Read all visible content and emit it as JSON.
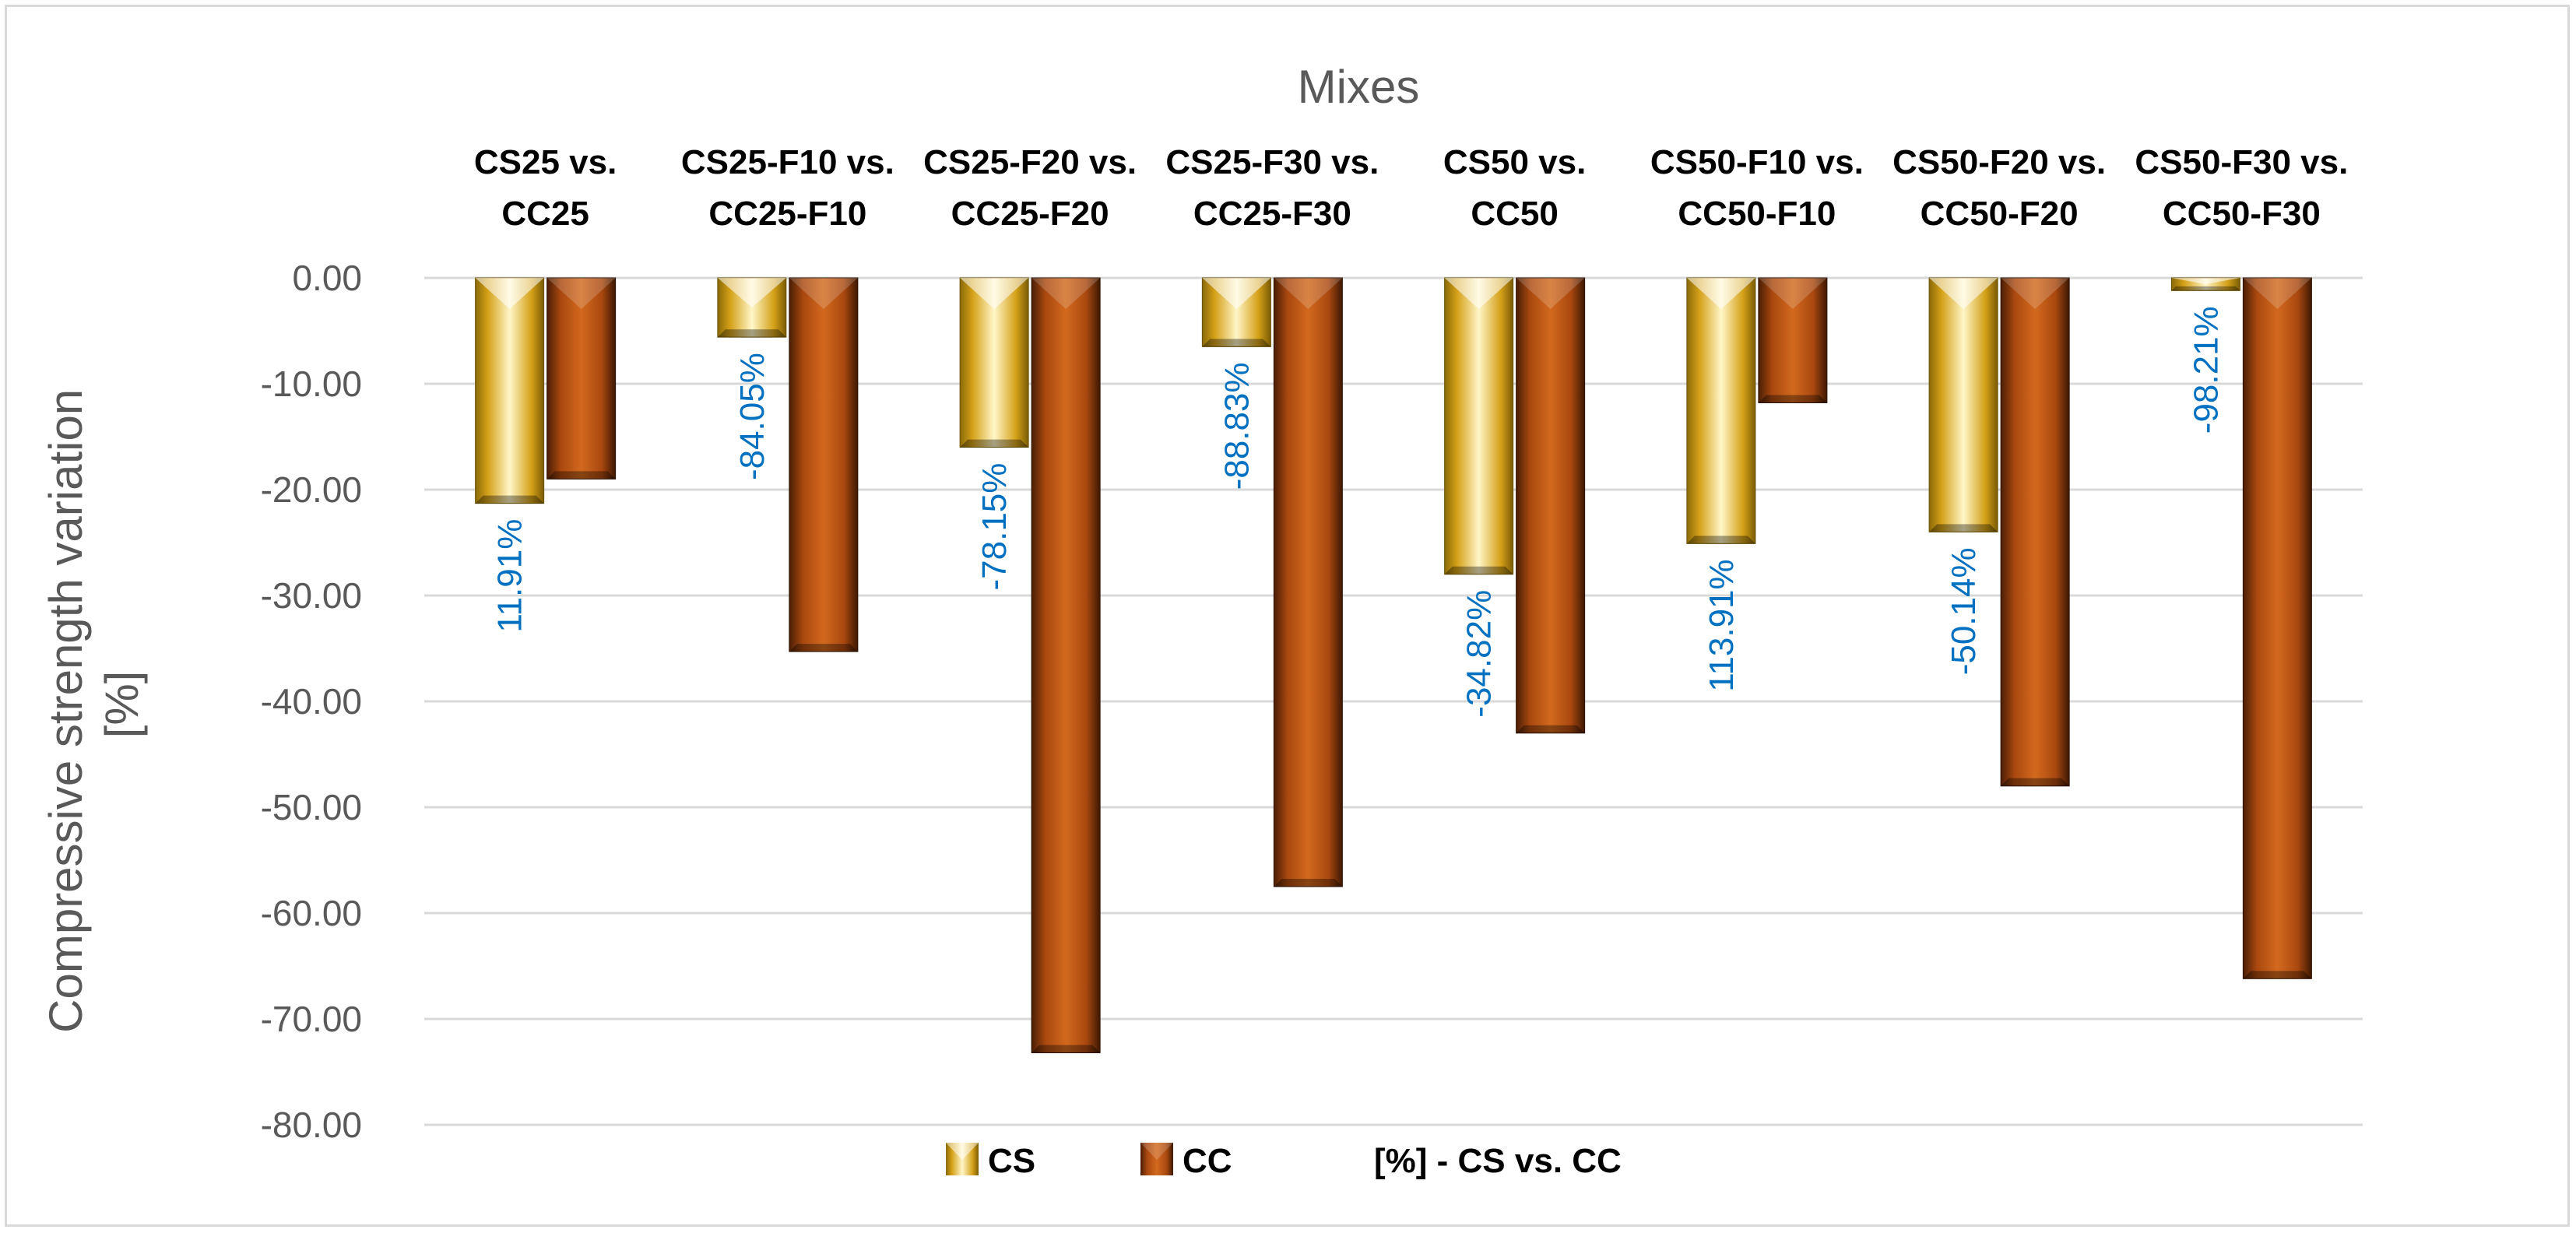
{
  "chart_data": {
    "type": "bar",
    "title": "",
    "x_axis_title": "Mixes",
    "ylabel": "Compressive strength  variation [%]",
    "ylabel_lines": [
      "Compressive strength  variation",
      "[%]"
    ],
    "ylim": [
      -80,
      0
    ],
    "yticks": [
      0,
      -10,
      -20,
      -30,
      -40,
      -50,
      -60,
      -70,
      -80
    ],
    "ytick_labels": [
      "0.00",
      "-10.00",
      "-20.00",
      "-30.00",
      "-40.00",
      "-50.00",
      "-60.00",
      "-70.00",
      "-80.00"
    ],
    "grid": true,
    "category_axis_position": "top",
    "categories": [
      [
        "CS25 vs.",
        "CC25"
      ],
      [
        "CS25-F10 vs.",
        "CC25-F10"
      ],
      [
        "CS25-F20 vs.",
        "CC25-F20"
      ],
      [
        "CS25-F30 vs.",
        "CC25-F30"
      ],
      [
        "CS50 vs.",
        "CC50"
      ],
      [
        "CS50-F10 vs.",
        "CC50-F10"
      ],
      [
        "CS50-F20 vs.",
        "CC50-F20"
      ],
      [
        "CS50-F30 vs.",
        "CC50-F30"
      ]
    ],
    "series": [
      {
        "name": "CS",
        "color": "#d4a017",
        "values": [
          -21.3,
          -5.6,
          -16.0,
          -6.5,
          -28.0,
          -25.1,
          -24.0,
          -1.2
        ]
      },
      {
        "name": "CC",
        "color": "#a9480f",
        "values": [
          -19.0,
          -35.3,
          -73.2,
          -57.5,
          -43.0,
          -11.8,
          -48.0,
          -66.2
        ]
      }
    ],
    "annotations": {
      "name": "[%] - CS vs. CC",
      "color": "#0070c0",
      "labels": [
        "11.91%",
        "-84.05%",
        "-78.15%",
        "-88.83%",
        "-34.82%",
        "113.91%",
        "-50.14%",
        "-98.21%"
      ]
    },
    "legend": {
      "position": "bottom",
      "entries": [
        "CS",
        "CC",
        "[%] - CS vs. CC"
      ]
    }
  }
}
